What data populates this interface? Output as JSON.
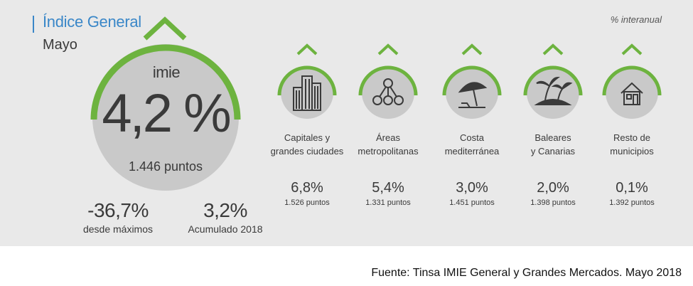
{
  "header": {
    "title": "Índice General",
    "subtitle": "Mayo",
    "note": "% interanual"
  },
  "main": {
    "brand": "imie",
    "value": "4,2 %",
    "points": "1.446 puntos",
    "accent_color": "#6db33f",
    "circle_color": "#c9c9c9",
    "stats": [
      {
        "value": "-36,7%",
        "label": "desde máximos"
      },
      {
        "value": "3,2%",
        "label": "Acumulado 2018"
      }
    ]
  },
  "categories": [
    {
      "icon": "buildings-icon",
      "label_1": "Capitales y",
      "label_2": "grandes ciudades",
      "value": "6,8%",
      "points": "1.526 puntos"
    },
    {
      "icon": "network-icon",
      "label_1": "Áreas",
      "label_2": "metropolitanas",
      "value": "5,4%",
      "points": "1.331 puntos"
    },
    {
      "icon": "beach-umbrella-icon",
      "label_1": "Costa",
      "label_2": "mediterránea",
      "value": "3,0%",
      "points": "1.451 puntos"
    },
    {
      "icon": "island-palm-icon",
      "label_1": "Baleares",
      "label_2": "y Canarias",
      "value": "2,0%",
      "points": "1.398 puntos"
    },
    {
      "icon": "house-icon",
      "label_1": "Resto de",
      "label_2": "municipios",
      "value": "0,1%",
      "points": "1.392 puntos"
    }
  ],
  "footer": {
    "source": "Fuente: Tinsa IMIE General y Grandes Mercados. Mayo 2018"
  }
}
